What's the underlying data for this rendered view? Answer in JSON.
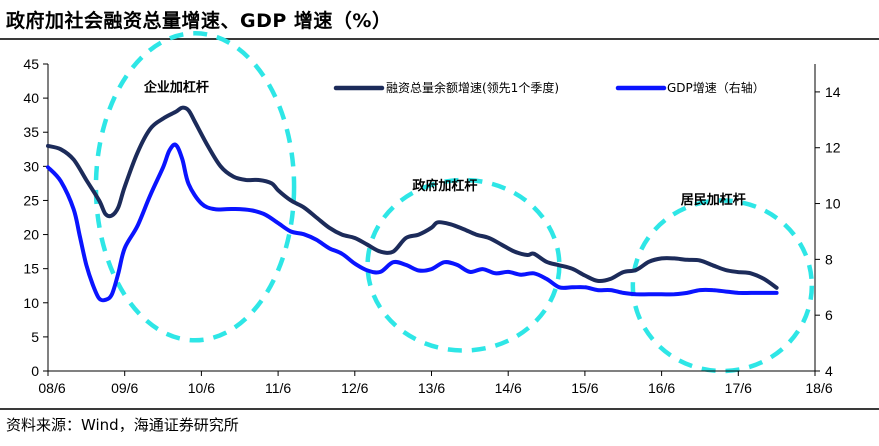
{
  "title": "政府加社会融资总量增速、GDP 增速（%）",
  "source": "资料来源：Wind，海通证券研究所",
  "chart_data": {
    "type": "line",
    "x_ticks": [
      "08/6",
      "09/6",
      "10/6",
      "11/6",
      "12/6",
      "13/6",
      "14/6",
      "15/6",
      "16/6",
      "17/6",
      "18/6"
    ],
    "x_range": [
      0,
      120
    ],
    "y_left": {
      "range": [
        0,
        45
      ],
      "ticks": [
        0,
        5,
        10,
        15,
        20,
        25,
        30,
        35,
        40,
        45
      ]
    },
    "y_right": {
      "range": [
        4,
        15
      ],
      "ticks": [
        4,
        6,
        8,
        10,
        12,
        14
      ]
    },
    "series": [
      {
        "name": "融资总量余额增速(领先1个季度)",
        "axis": "left",
        "color": "#1c2b5a",
        "points": [
          [
            0,
            33
          ],
          [
            2,
            32.5
          ],
          [
            4,
            31
          ],
          [
            6,
            28
          ],
          [
            8,
            25
          ],
          [
            9,
            23
          ],
          [
            10,
            22.8
          ],
          [
            11,
            24
          ],
          [
            12,
            27
          ],
          [
            14,
            32
          ],
          [
            16,
            35.5
          ],
          [
            18,
            37
          ],
          [
            20,
            38
          ],
          [
            21,
            38.6
          ],
          [
            22,
            38.2
          ],
          [
            23,
            36.5
          ],
          [
            25,
            33
          ],
          [
            27,
            30
          ],
          [
            29,
            28.5
          ],
          [
            31,
            28
          ],
          [
            33,
            28
          ],
          [
            35,
            27.5
          ],
          [
            36,
            26.5
          ],
          [
            38,
            25
          ],
          [
            40,
            24
          ],
          [
            42,
            22.5
          ],
          [
            44,
            21
          ],
          [
            46,
            20
          ],
          [
            48,
            19.5
          ],
          [
            50,
            18.5
          ],
          [
            52,
            17.5
          ],
          [
            54,
            17.5
          ],
          [
            56,
            19.5
          ],
          [
            58,
            20
          ],
          [
            60,
            21
          ],
          [
            61,
            21.8
          ],
          [
            63,
            21.5
          ],
          [
            65,
            20.8
          ],
          [
            67,
            20
          ],
          [
            69,
            19.5
          ],
          [
            71,
            18.5
          ],
          [
            73,
            17.5
          ],
          [
            75,
            17
          ],
          [
            76,
            17.2
          ],
          [
            78,
            16
          ],
          [
            80,
            15.5
          ],
          [
            82,
            15
          ],
          [
            84,
            14
          ],
          [
            86,
            13.2
          ],
          [
            88,
            13.5
          ],
          [
            90,
            14.5
          ],
          [
            92,
            14.8
          ],
          [
            94,
            16
          ],
          [
            96,
            16.5
          ],
          [
            98,
            16.5
          ],
          [
            100,
            16.3
          ],
          [
            102,
            16.2
          ],
          [
            104,
            15.5
          ],
          [
            106,
            14.8
          ],
          [
            108,
            14.5
          ],
          [
            110,
            14.3
          ],
          [
            112,
            13.5
          ],
          [
            114,
            12.2
          ]
        ]
      },
      {
        "name": "GDP增速（右轴）",
        "axis": "right",
        "color": "#0a14ff",
        "points": [
          [
            0,
            11.3
          ],
          [
            2,
            10.8
          ],
          [
            4,
            9.8
          ],
          [
            5,
            8.8
          ],
          [
            6,
            7.8
          ],
          [
            7,
            7.1
          ],
          [
            8,
            6.6
          ],
          [
            9,
            6.55
          ],
          [
            10,
            6.75
          ],
          [
            11,
            7.5
          ],
          [
            12,
            8.4
          ],
          [
            14,
            9.2
          ],
          [
            16,
            10.3
          ],
          [
            18,
            11.3
          ],
          [
            19,
            11.9
          ],
          [
            20,
            12.1
          ],
          [
            21,
            11.6
          ],
          [
            22,
            10.7
          ],
          [
            24,
            10.0
          ],
          [
            26,
            9.8
          ],
          [
            28,
            9.8
          ],
          [
            30,
            9.8
          ],
          [
            32,
            9.75
          ],
          [
            34,
            9.6
          ],
          [
            36,
            9.3
          ],
          [
            38,
            9.0
          ],
          [
            40,
            8.9
          ],
          [
            42,
            8.7
          ],
          [
            44,
            8.4
          ],
          [
            46,
            8.2
          ],
          [
            48,
            7.85
          ],
          [
            50,
            7.6
          ],
          [
            52,
            7.55
          ],
          [
            54,
            7.9
          ],
          [
            56,
            7.8
          ],
          [
            58,
            7.6
          ],
          [
            60,
            7.65
          ],
          [
            62,
            7.9
          ],
          [
            64,
            7.8
          ],
          [
            66,
            7.55
          ],
          [
            68,
            7.65
          ],
          [
            70,
            7.5
          ],
          [
            72,
            7.55
          ],
          [
            74,
            7.45
          ],
          [
            76,
            7.5
          ],
          [
            78,
            7.3
          ],
          [
            80,
            7.0
          ],
          [
            82,
            7.0
          ],
          [
            84,
            7.0
          ],
          [
            86,
            6.9
          ],
          [
            88,
            6.9
          ],
          [
            90,
            6.8
          ],
          [
            92,
            6.75
          ],
          [
            94,
            6.75
          ],
          [
            96,
            6.75
          ],
          [
            98,
            6.75
          ],
          [
            100,
            6.8
          ],
          [
            102,
            6.9
          ],
          [
            104,
            6.9
          ],
          [
            106,
            6.85
          ],
          [
            108,
            6.8
          ],
          [
            110,
            6.8
          ],
          [
            112,
            6.8
          ],
          [
            114,
            6.8
          ]
        ]
      }
    ],
    "annotations": [
      {
        "text": "企业加杠杆",
        "cx": 23,
        "cy": 27,
        "rx": 15.5,
        "ry": 22.5,
        "label_x": 15,
        "label_y": 41
      },
      {
        "text": "政府加杠杆",
        "cx": 65,
        "cy": 15.5,
        "rx": 15,
        "ry": 12.5,
        "label_x": 57,
        "label_y": 26.5
      },
      {
        "text": "居民加杠杆",
        "cx": 105.5,
        "cy": 12.5,
        "rx": 14,
        "ry": 12.5,
        "label_x": 99,
        "label_y": 24.5
      }
    ],
    "ellipse_color": "#2ee6e6"
  }
}
